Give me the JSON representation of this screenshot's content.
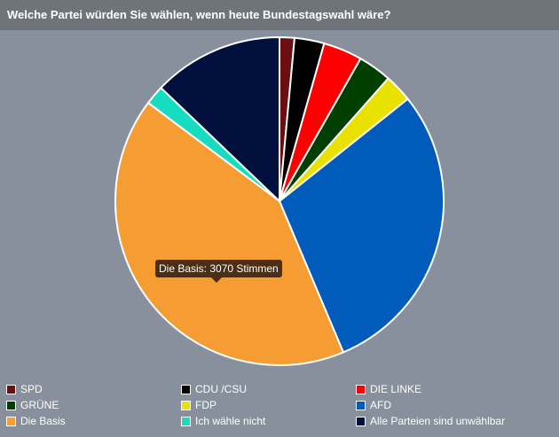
{
  "header": {
    "title": "Welche Partei würden Sie wählen, wenn heute Bundestagswahl wäre?"
  },
  "tooltip": {
    "text": "Die Basis: 3070 Stimmen"
  },
  "colors": {
    "background": "#87909c",
    "header": "#6f737a",
    "tooltip": "#4a2e16"
  },
  "chart_data": {
    "type": "pie",
    "title": "Welche Partei würden Sie wählen, wenn heute Bundestagswahl wäre?",
    "legend_position": "bottom",
    "categories": [
      "SPD",
      "CDU /CSU",
      "DIE LINKE",
      "GRÜNE",
      "FDP",
      "AFD",
      "Die Basis",
      "Ich wähle nicht",
      "Alle Parteien sind unwählbar"
    ],
    "values": [
      108,
      216,
      283,
      244,
      203,
      2167,
      3070,
      141,
      948
    ],
    "colors": [
      "#6b0f12",
      "#000000",
      "#ff0000",
      "#013f00",
      "#e9e200",
      "#005bbb",
      "#f59c33",
      "#16dcc0",
      "#02103d"
    ]
  }
}
